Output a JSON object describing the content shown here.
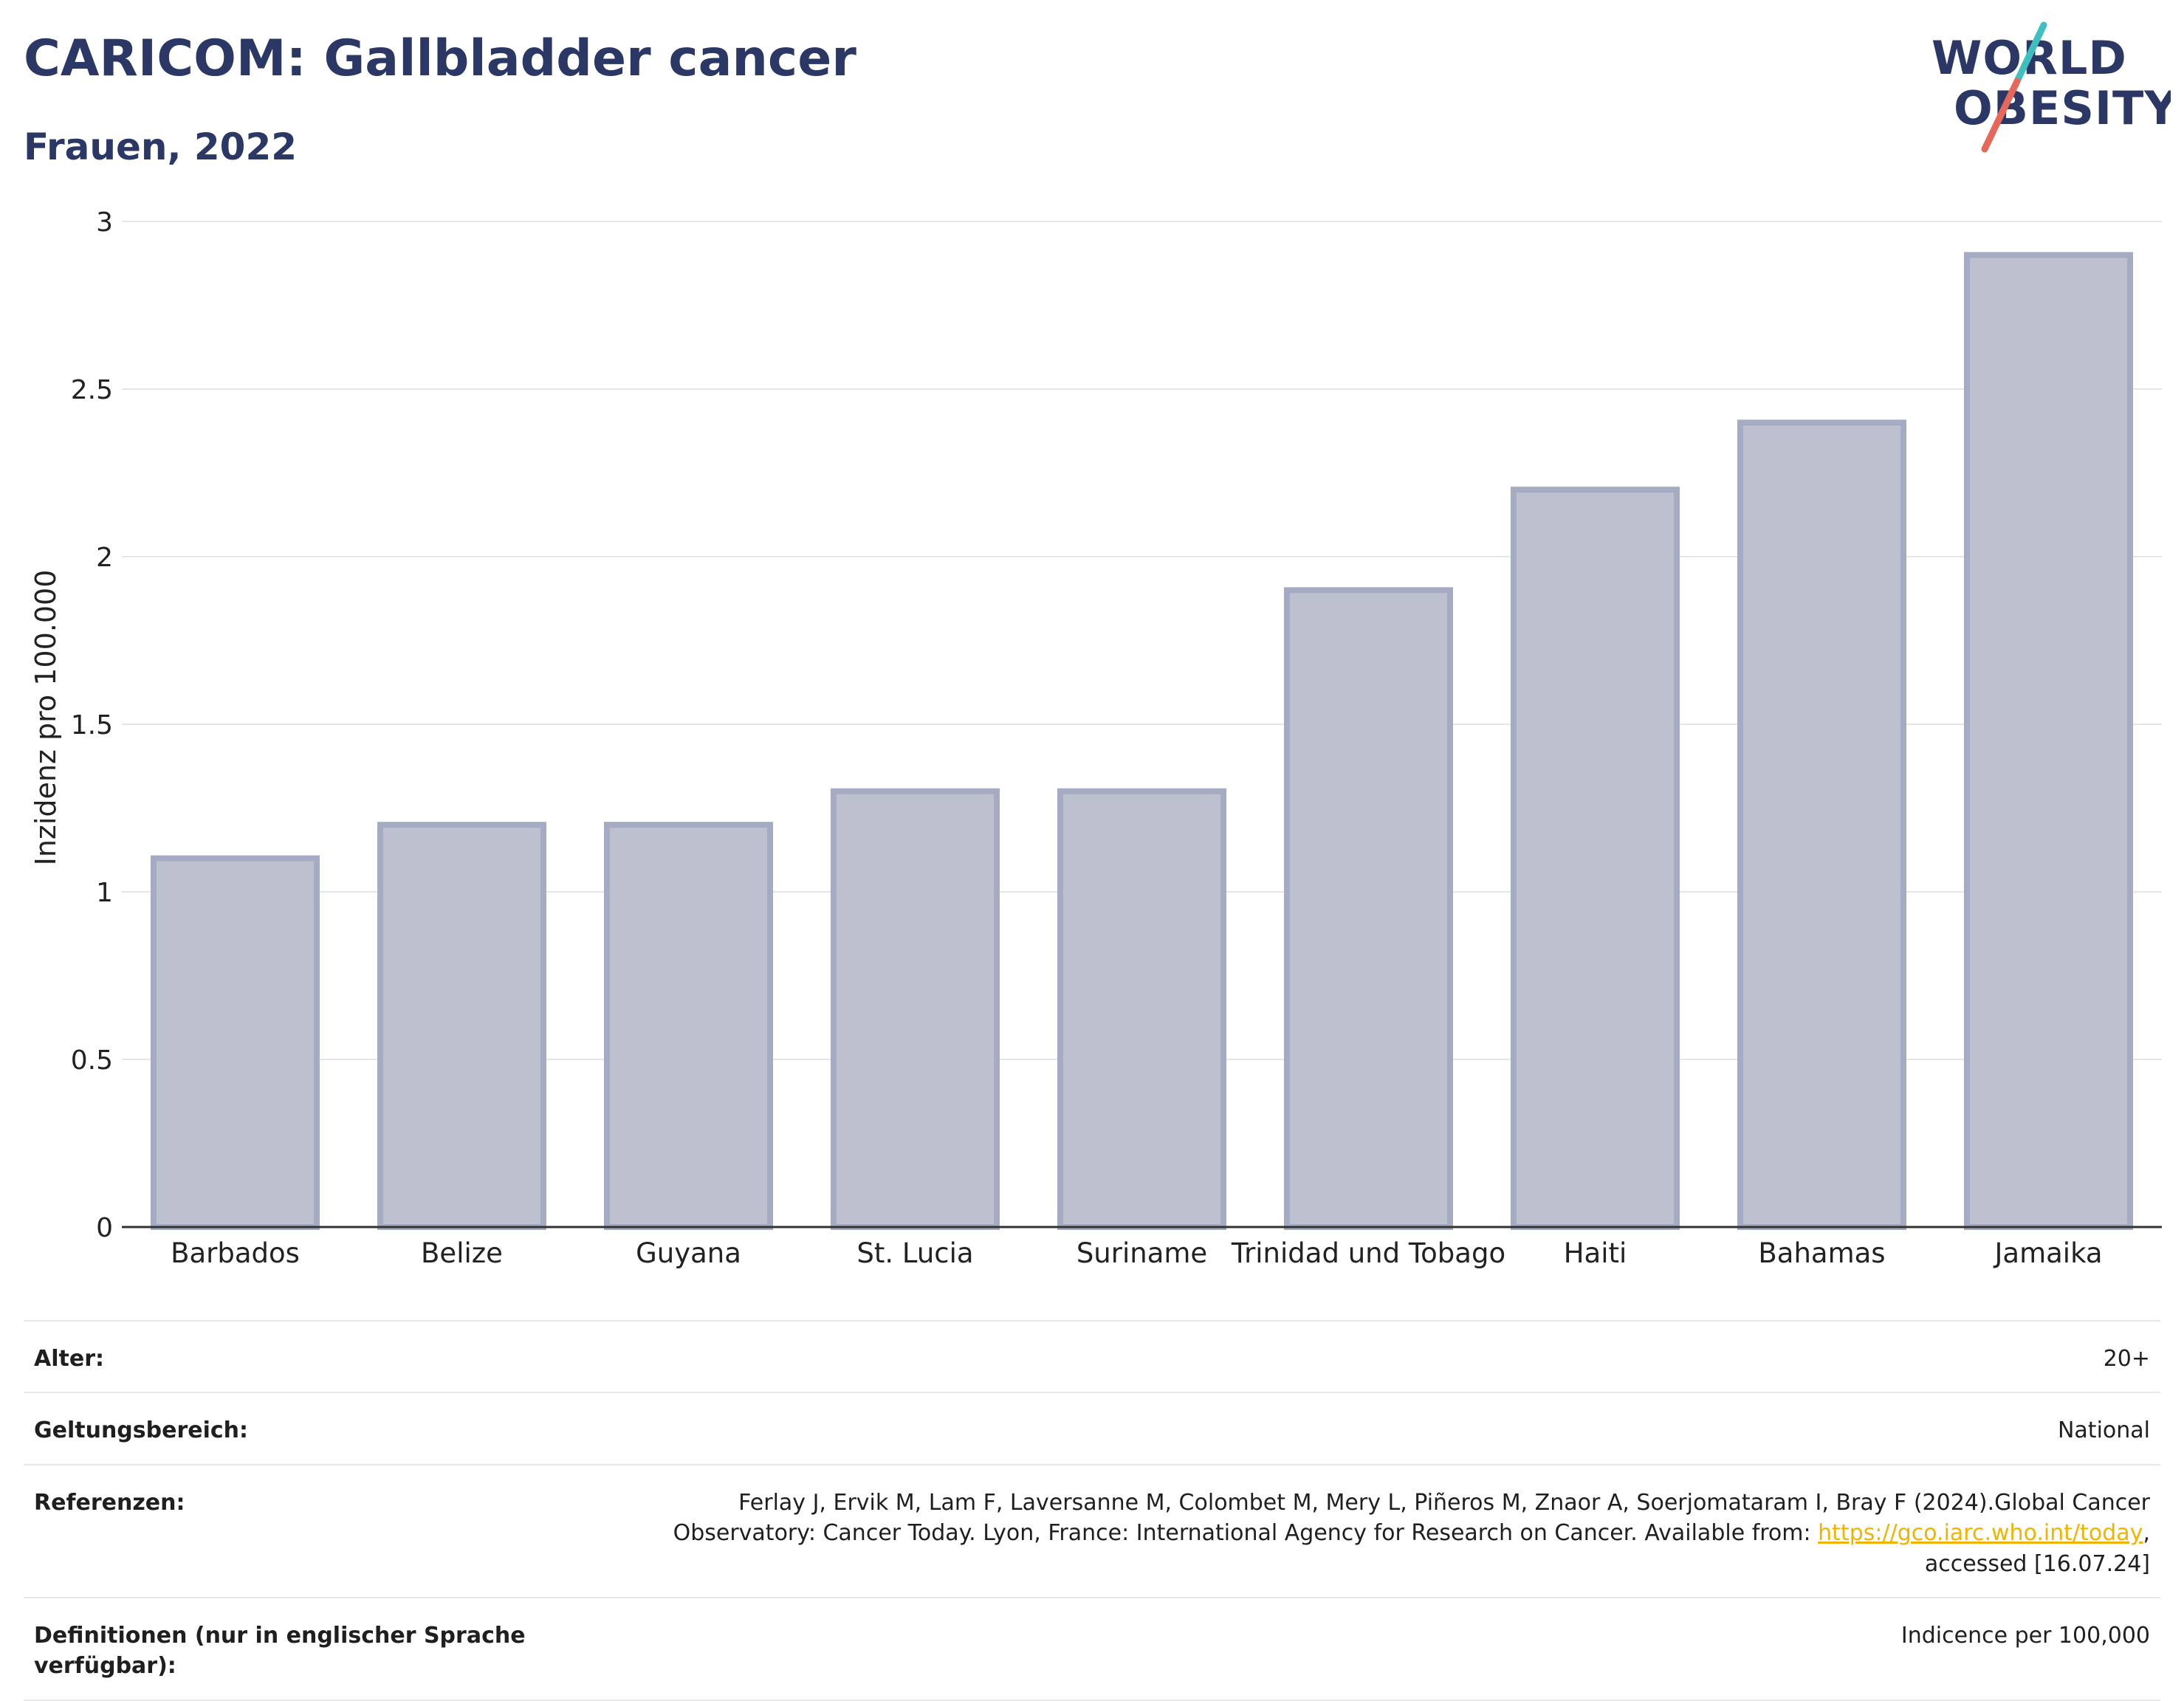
{
  "header": {
    "title": "CARICOM: Gallbladder cancer",
    "subtitle": "Frauen, 2022"
  },
  "logo": {
    "line1": "WORLD",
    "line2": "OBESITY",
    "text_color": "#2b3866",
    "slash_teal": "#3fbfbf",
    "slash_coral": "#e5685a"
  },
  "chart_data": {
    "type": "bar",
    "categories": [
      "Barbados",
      "Belize",
      "Guyana",
      "St. Lucia",
      "Suriname",
      "Trinidad und Tobago",
      "Haiti",
      "Bahamas",
      "Jamaika"
    ],
    "values": [
      1.1,
      1.2,
      1.2,
      1.3,
      1.3,
      1.9,
      2.2,
      2.4,
      2.9
    ],
    "title": "CARICOM: Gallbladder cancer",
    "subtitle": "Frauen, 2022",
    "xlabel": "",
    "ylabel": "Inzidenz pro 100.000",
    "ylim": [
      0,
      3
    ],
    "yticks": [
      0,
      0.5,
      1,
      1.5,
      2,
      2.5,
      3
    ],
    "ytick_labels": [
      "0",
      "0.5",
      "1",
      "1.5",
      "2",
      "2.5",
      "3"
    ],
    "grid": true,
    "legend": "none",
    "bar_color": "#bdc1cf",
    "bar_border_color": "#a6abc4"
  },
  "info": {
    "age_label": "Alter:",
    "age_value": "20+",
    "scope_label": "Geltungsbereich:",
    "scope_value": "National",
    "ref_label": "Referenzen:",
    "ref_line1": "Ferlay J, Ervik M, Lam F, Laversanne M, Colombet M, Mery L, Piñeros M, Znaor A, Soerjomataram I, Bray F (2024).Global Cancer",
    "ref_line2_pre": "Observatory: Cancer Today. Lyon, France: International Agency for Research on Cancer. Available from: ",
    "ref_link": "https://gco.iarc.who.int/today",
    "ref_line2_post": ",",
    "ref_line3": "accessed [16.07.24]",
    "def_label": "Definitionen (nur in englischer Sprache verfügbar):",
    "def_value": "Indicence per 100,000"
  }
}
